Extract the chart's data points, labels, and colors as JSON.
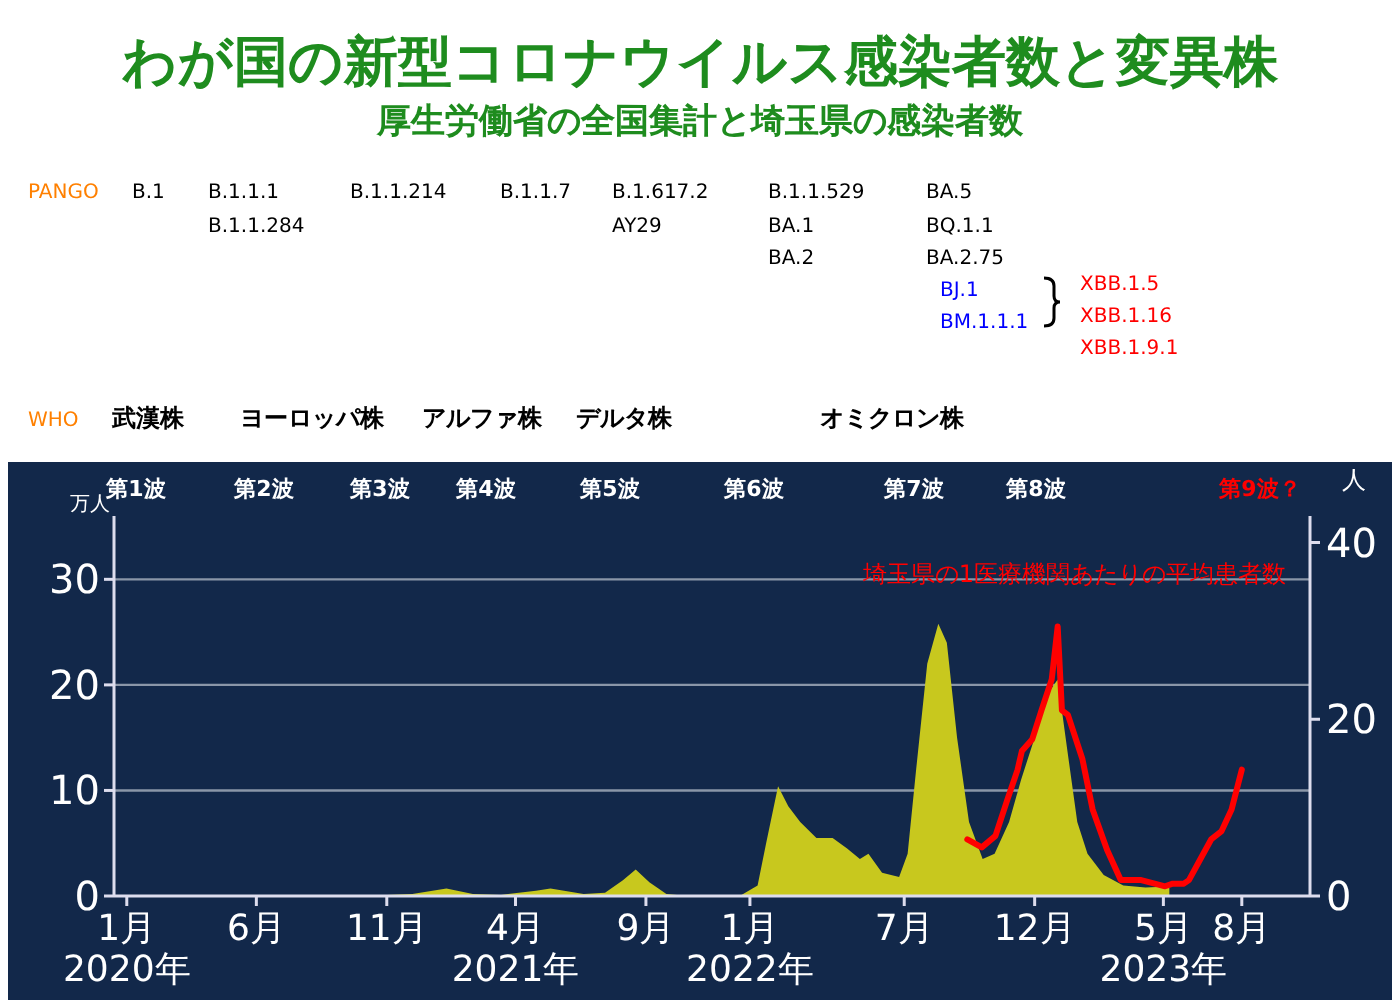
{
  "chart_data": {
    "type": "area",
    "title": "わが国の新型コロナウイルス感染者数と変異株",
    "subtitle": "厚生労働省の全国集計と埼玉県の感染者数",
    "ylabel": "万人",
    "y2label": "人",
    "xlim": [
      "2019-12-17",
      "2023-10-20"
    ],
    "xticks": [
      {
        "value": "2020-01-01",
        "label": "1月\n2020年"
      },
      {
        "value": "2020-06-01",
        "label": "6月"
      },
      {
        "value": "2020-11-01",
        "label": "11月"
      },
      {
        "value": "2021-04-01",
        "label": "4月\n2021年"
      },
      {
        "value": "2021-09-01",
        "label": "9月"
      },
      {
        "value": "2022-01-01",
        "label": "1月\n2022年"
      },
      {
        "value": "2022-07-01",
        "label": "7月"
      },
      {
        "value": "2022-12-01",
        "label": "12月"
      },
      {
        "value": "2023-05-01",
        "label": "5月\n2023年"
      },
      {
        "value": "2023-08-01",
        "label": "8月"
      }
    ],
    "ylim": [
      0,
      36
    ],
    "yticks": [
      0,
      10,
      20,
      30
    ],
    "y2lim": [
      0,
      43
    ],
    "y2ticks": [
      0,
      20,
      40
    ],
    "grid": "y",
    "series": [
      {
        "color": "#c8c81e",
        "x": [
          "2020-01-15",
          "2020-03-01",
          "2020-04-10",
          "2020-05-15",
          "2020-07-01",
          "2020-08-05",
          "2020-09-15",
          "2020-11-01",
          "2020-12-01",
          "2021-01-10",
          "2021-02-10",
          "2021-03-15",
          "2021-04-25",
          "2021-05-12",
          "2021-06-20",
          "2021-07-15",
          "2021-08-05",
          "2021-08-20",
          "2021-09-05",
          "2021-09-25",
          "2021-10-20",
          "2021-12-20",
          "2022-01-10",
          "2022-01-20",
          "2022-02-03",
          "2022-02-15",
          "2022-03-01",
          "2022-03-20",
          "2022-04-08",
          "2022-04-25",
          "2022-05-10",
          "2022-05-20",
          "2022-06-05",
          "2022-06-25",
          "2022-07-05",
          "2022-07-15",
          "2022-07-28",
          "2022-08-10",
          "2022-08-20",
          "2022-09-01",
          "2022-09-15",
          "2022-10-01",
          "2022-10-15",
          "2022-11-01",
          "2022-11-15",
          "2022-12-01",
          "2022-12-15",
          "2022-12-28",
          "2023-01-08",
          "2023-01-20",
          "2023-02-01",
          "2023-02-20",
          "2023-03-15",
          "2023-04-10",
          "2023-05-08"
        ],
        "values": [
          0,
          0,
          0.1,
          0,
          0,
          0.1,
          0.1,
          0.1,
          0.2,
          0.7,
          0.2,
          0.1,
          0.5,
          0.7,
          0.2,
          0.3,
          1.5,
          2.5,
          1.3,
          0.2,
          0,
          0,
          1,
          5,
          10.4,
          8.5,
          7,
          5.5,
          5.5,
          4.5,
          3.5,
          4,
          2.2,
          1.8,
          4,
          12,
          22,
          25.8,
          24,
          15,
          7,
          3.5,
          4,
          7,
          11,
          15,
          19,
          20.5,
          14,
          7,
          4,
          2,
          1,
          0.8,
          0.9
        ]
      },
      {
        "type": "line",
        "name": "埼玉県の1医療機関あたりの平均患者数",
        "color": "#ff0000",
        "axis": "y2",
        "x": [
          "2022-09-13",
          "2022-09-30",
          "2022-10-16",
          "2022-10-30",
          "2022-11-11",
          "2022-11-16",
          "2022-11-28",
          "2022-12-09",
          "2022-12-21",
          "2022-12-28",
          "2023-01-02",
          "2023-01-09",
          "2023-01-26",
          "2023-02-07",
          "2023-02-24",
          "2023-03-12",
          "2023-04-05",
          "2023-05-03",
          "2023-05-12",
          "2023-05-25",
          "2023-05-31",
          "2023-06-13",
          "2023-06-26",
          "2023-07-08",
          "2023-07-20",
          "2023-08-01"
        ],
        "values": [
          6.4,
          5.5,
          6.8,
          10.9,
          14.3,
          16.4,
          17.7,
          21,
          24.5,
          30.5,
          21,
          20.5,
          15.5,
          9.8,
          5.2,
          1.8,
          1.8,
          1.1,
          1.4,
          1.4,
          1.8,
          4.1,
          6.4,
          7.3,
          9.8,
          14.3
        ]
      }
    ],
    "annotations": [
      "PANGO",
      "B.1",
      "B.1.1.1",
      "B.1.1.284",
      "B.1.1.214",
      "B.1.1.7",
      "B.1.617.2",
      "AY29",
      "B.1.1.529",
      "BA.1",
      "BA.2",
      "BA.5",
      "BQ.1.1",
      "BA.2.75",
      "BJ.1",
      "BM.1.1.1",
      "XBB.1.5",
      "XBB.1.16",
      "XBB.1.9.1",
      "WHO",
      "武漢株",
      "ヨーロッパ株",
      "アルファ株",
      "デルタ株",
      "オミクロン株",
      "第1波",
      "第2波",
      "第3波",
      "第4波",
      "第5波",
      "第6波",
      "第7波",
      "第8波",
      "第9波？"
    ]
  }
}
